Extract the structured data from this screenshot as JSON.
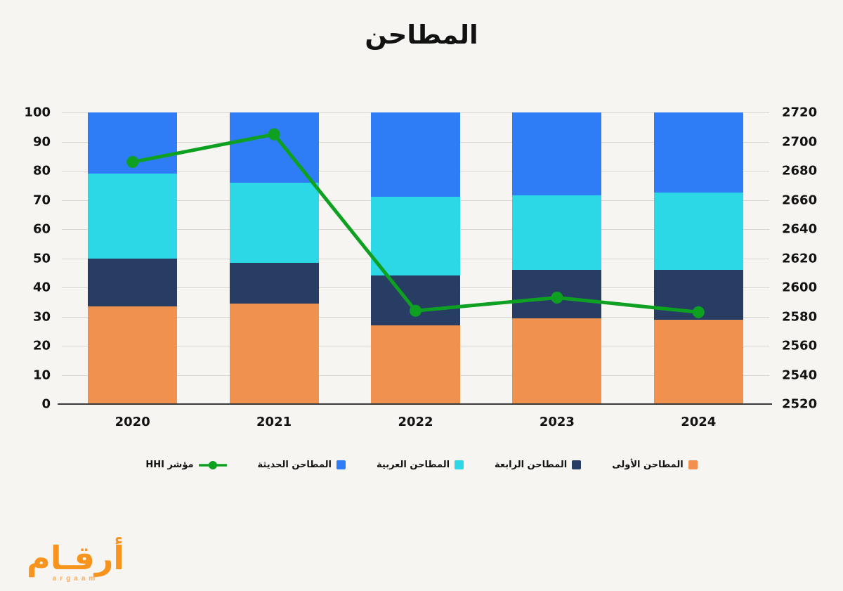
{
  "title": "المطاحن",
  "chart_data": {
    "type": "combo-stacked-bar-line",
    "title": "المطاحن",
    "categories": [
      "2020",
      "2021",
      "2022",
      "2023",
      "2024"
    ],
    "bar_series": [
      {
        "name": "المطاحن الأولى",
        "color": "#F0914E",
        "values": [
          33.5,
          34.5,
          27,
          29.5,
          29
        ]
      },
      {
        "name": "المطاحن الرابعة",
        "color": "#273D64",
        "values": [
          16.5,
          14,
          17,
          16.5,
          17
        ]
      },
      {
        "name": "المطاحن العربية",
        "color": "#2DD8E6",
        "values": [
          29,
          27.5,
          27,
          25.5,
          26.5
        ]
      },
      {
        "name": "المطاحن الحديثة",
        "color": "#2E7DF7",
        "values": [
          21,
          24,
          29,
          28.5,
          27.5
        ]
      }
    ],
    "line_series": {
      "name": "مؤشر HHI",
      "color": "#0EA021",
      "axis": "right",
      "values": [
        2686,
        2705,
        2584,
        2593,
        2583
      ]
    },
    "left_axis": {
      "min": 0,
      "max": 100,
      "step": 10,
      "ticks": [
        0,
        10,
        20,
        30,
        40,
        50,
        60,
        70,
        80,
        90,
        100
      ]
    },
    "right_axis": {
      "min": 2520,
      "max": 2720,
      "step": 20,
      "ticks": [
        2520,
        2540,
        2560,
        2580,
        2600,
        2620,
        2640,
        2660,
        2680,
        2700,
        2720
      ]
    },
    "grid": true,
    "legend_position": "bottom"
  },
  "legend_items": [
    {
      "label": "المطاحن الأولى",
      "type": "square",
      "color": "#F0914E"
    },
    {
      "label": "المطاحن الرابعة",
      "type": "square",
      "color": "#273D64"
    },
    {
      "label": "المطاحن العربية",
      "type": "square",
      "color": "#2DD8E6"
    },
    {
      "label": "المطاحن الحديثة",
      "type": "square",
      "color": "#2E7DF7"
    },
    {
      "label": "مؤشر HHI",
      "type": "line",
      "color": "#0EA021"
    }
  ],
  "logo": {
    "brand": "أرقـام",
    "sub": "argaam"
  }
}
